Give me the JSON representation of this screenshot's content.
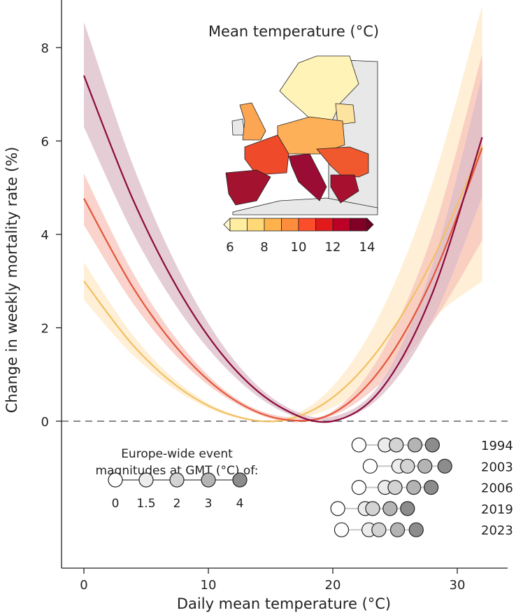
{
  "chart_data": {
    "type": "line",
    "xlabel": "Daily mean temperature (°C)",
    "ylabel": "Change in weekly mortality rate (%)",
    "xlim": [
      -1.8,
      34
    ],
    "ylim": [
      -3.2,
      9
    ],
    "xticks": [
      "0",
      "10",
      "20",
      "30"
    ],
    "xtick_values": [
      0,
      10,
      20,
      30
    ],
    "yticks": [
      "0",
      "2",
      "4",
      "6",
      "8"
    ],
    "ytick_values": [
      0,
      2,
      4,
      6,
      8
    ],
    "reference_line": {
      "y": 0,
      "style": "dashed",
      "color": "#8a8a8a"
    },
    "x": [
      0,
      4,
      8,
      12,
      16,
      20,
      24,
      28,
      32
    ],
    "series": [
      {
        "color": "#f2c062",
        "band_color": "#fde9c8",
        "y": [
          3.0,
          1.61,
          0.65,
          0.12,
          0.02,
          0.51,
          1.65,
          3.45,
          5.9
        ],
        "upper": [
          3.4,
          1.82,
          0.74,
          0.15,
          0.06,
          0.75,
          2.4,
          5.1,
          8.9
        ],
        "lower": [
          2.6,
          1.4,
          0.56,
          0.09,
          0.0,
          0.3,
          1.0,
          2.2,
          3.0
        ]
      },
      {
        "color": "#e4553a",
        "band_color": "#f7c4bb",
        "y": [
          4.77,
          2.84,
          1.41,
          0.47,
          0.04,
          0.17,
          1.17,
          3.06,
          5.85
        ],
        "upper": [
          5.3,
          3.15,
          1.57,
          0.53,
          0.1,
          0.22,
          1.5,
          4.0,
          7.86
        ],
        "lower": [
          4.2,
          2.5,
          1.24,
          0.41,
          0.0,
          0.12,
          0.85,
          2.1,
          3.87
        ]
      },
      {
        "color": "#8b0a3b",
        "band_color": "#dcbcc8",
        "y": [
          7.4,
          4.71,
          2.63,
          1.15,
          0.27,
          0.0,
          0.72,
          2.74,
          6.08
        ],
        "upper": [
          8.55,
          5.44,
          3.04,
          1.33,
          0.35,
          0.1,
          0.88,
          3.34,
          7.4
        ],
        "lower": [
          6.3,
          4.0,
          2.24,
          0.98,
          0.2,
          0.0,
          0.57,
          2.16,
          4.8
        ]
      }
    ],
    "inset_map": {
      "title": "Mean temperature (°C)",
      "colorbar_ticks": [
        "6",
        "8",
        "10",
        "12",
        "14"
      ],
      "colorbar_range": [
        6,
        14
      ],
      "colorbar_colors": [
        "#ffeda0",
        "#fed976",
        "#feb24c",
        "#fd8d3c",
        "#fc4e2a",
        "#e31a1c",
        "#bd0026",
        "#800026"
      ]
    },
    "event_legend": {
      "title_line1": "Europe-wide event",
      "title_line2": "magnitudes at GMT (°C) of:",
      "gmt_levels": [
        "0",
        "1.5",
        "2",
        "3",
        "4"
      ],
      "gmt_colors": [
        "#ffffff",
        "#ececec",
        "#d3d3d3",
        "#b4b4b4",
        "#8c8c8c"
      ]
    },
    "events": [
      {
        "year": "1994",
        "temps": [
          22.1,
          24.2,
          25.1,
          26.6,
          28.0
        ]
      },
      {
        "year": "2003",
        "temps": [
          23.0,
          25.3,
          26.0,
          27.4,
          29.0
        ]
      },
      {
        "year": "2006",
        "temps": [
          22.1,
          24.2,
          25.0,
          26.5,
          27.9
        ]
      },
      {
        "year": "2019",
        "temps": [
          20.4,
          22.6,
          23.2,
          24.6,
          26.0
        ]
      },
      {
        "year": "2023",
        "temps": [
          20.7,
          22.9,
          23.7,
          25.2,
          26.7
        ]
      }
    ]
  }
}
